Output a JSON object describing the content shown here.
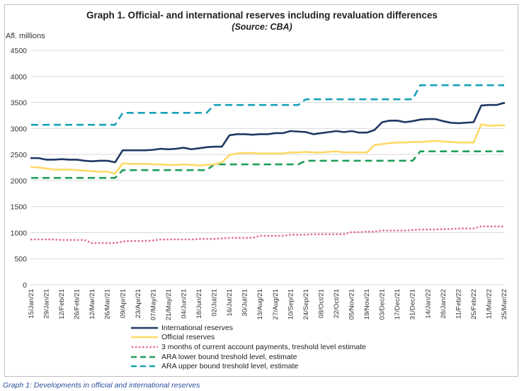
{
  "chart_data": {
    "type": "line",
    "title": "Graph 1. Official- and international reserves including revaluation differences",
    "subtitle": "(Source: CBA)",
    "ylabel": "Afl. millions",
    "ylim": [
      0,
      4500
    ],
    "yticks": [
      0,
      500,
      1000,
      1500,
      2000,
      2500,
      3000,
      3500,
      4000,
      4500
    ],
    "grid": true,
    "legend_position": "bottom",
    "x_tick_labels": [
      "15/Jan/21",
      "29/Jan/21",
      "12/Feb/21",
      "26/Feb/21",
      "12/Mar/21",
      "26/Mar/21",
      "09/Apr/21",
      "23/Apr/21",
      "07/May/21",
      "21/May/21",
      "04/Jun/21",
      "18/Jun/21",
      "02/Jul/21",
      "16/Jul/21",
      "30/Jul/21",
      "13/Aug/21",
      "27/Aug/21",
      "10/Sep/21",
      "24/Sep/21",
      "08/Oct/21",
      "22/Oct/21",
      "05/Nov/21",
      "19/Nov/21",
      "03/Dec/21",
      "17/Dec/21",
      "31/Dec/21",
      "14/Jan/22",
      "28/Jan/22",
      "11/Feb/22",
      "25/Feb/22",
      "11/Mar/22",
      "25/Mar/22"
    ],
    "series": [
      {
        "name": "International reserves",
        "color": "#1f3864",
        "style": "solid",
        "values": [
          2430,
          2430,
          2400,
          2400,
          2410,
          2400,
          2400,
          2380,
          2370,
          2380,
          2380,
          2350,
          2580,
          2580,
          2580,
          2580,
          2590,
          2610,
          2600,
          2610,
          2630,
          2600,
          2620,
          2640,
          2650,
          2650,
          2870,
          2890,
          2890,
          2880,
          2890,
          2890,
          2910,
          2910,
          2950,
          2940,
          2930,
          2890,
          2910,
          2930,
          2950,
          2930,
          2950,
          2920,
          2920,
          2970,
          3120,
          3150,
          3150,
          3120,
          3140,
          3170,
          3180,
          3180,
          3140,
          3110,
          3100,
          3110,
          3120,
          3440,
          3450,
          3450,
          3490
        ]
      },
      {
        "name": "Official reserves",
        "color": "#ffd966",
        "style": "solid",
        "values": [
          2260,
          2250,
          2230,
          2210,
          2210,
          2210,
          2200,
          2190,
          2180,
          2170,
          2170,
          2130,
          2330,
          2320,
          2320,
          2320,
          2310,
          2310,
          2300,
          2300,
          2310,
          2300,
          2290,
          2300,
          2310,
          2350,
          2490,
          2520,
          2530,
          2530,
          2520,
          2520,
          2520,
          2520,
          2540,
          2540,
          2550,
          2540,
          2540,
          2550,
          2560,
          2540,
          2540,
          2540,
          2540,
          2680,
          2700,
          2720,
          2730,
          2730,
          2740,
          2740,
          2750,
          2760,
          2750,
          2740,
          2730,
          2730,
          2730,
          3080,
          3050,
          3060,
          3060
        ]
      },
      {
        "name": "3 months of current account payments, treshold level estimate",
        "color": "#e8738f",
        "style": "dotted",
        "values": [
          870,
          870,
          870,
          870,
          860,
          860,
          860,
          860,
          800,
          800,
          800,
          800,
          830,
          840,
          840,
          840,
          850,
          870,
          870,
          870,
          870,
          870,
          880,
          880,
          880,
          890,
          900,
          900,
          900,
          900,
          940,
          940,
          940,
          940,
          960,
          960,
          960,
          970,
          970,
          970,
          970,
          970,
          1010,
          1010,
          1020,
          1020,
          1040,
          1040,
          1040,
          1040,
          1050,
          1060,
          1060,
          1060,
          1070,
          1070,
          1080,
          1080,
          1080,
          1120,
          1120,
          1120,
          1120
        ]
      },
      {
        "name": "ARA lower bound treshold level, estimate",
        "color": "#1f9e5a",
        "style": "dashed",
        "values": [
          2050,
          2050,
          2050,
          2050,
          2050,
          2050,
          2050,
          2050,
          2050,
          2050,
          2050,
          2050,
          2200,
          2200,
          2200,
          2200,
          2200,
          2200,
          2200,
          2200,
          2200,
          2200,
          2200,
          2200,
          2310,
          2310,
          2310,
          2310,
          2310,
          2310,
          2310,
          2310,
          2310,
          2310,
          2310,
          2310,
          2380,
          2380,
          2380,
          2380,
          2380,
          2380,
          2380,
          2380,
          2380,
          2380,
          2380,
          2380,
          2380,
          2380,
          2380,
          2560,
          2560,
          2560,
          2560,
          2560,
          2560,
          2560,
          2560,
          2560,
          2560,
          2560,
          2560
        ]
      },
      {
        "name": "ARA upper bound treshold level, estimate",
        "color": "#17a2b8",
        "style": "dashed",
        "values": [
          3070,
          3070,
          3070,
          3070,
          3070,
          3070,
          3070,
          3070,
          3070,
          3070,
          3070,
          3070,
          3300,
          3300,
          3300,
          3300,
          3300,
          3300,
          3300,
          3300,
          3300,
          3300,
          3300,
          3300,
          3450,
          3450,
          3450,
          3450,
          3450,
          3450,
          3450,
          3450,
          3450,
          3450,
          3450,
          3450,
          3560,
          3560,
          3560,
          3560,
          3560,
          3560,
          3560,
          3560,
          3560,
          3560,
          3560,
          3560,
          3560,
          3560,
          3560,
          3830,
          3830,
          3830,
          3830,
          3830,
          3830,
          3830,
          3830,
          3830,
          3830,
          3830,
          3830
        ]
      }
    ]
  },
  "caption": "Graph 1: Developments in official and international reserves"
}
